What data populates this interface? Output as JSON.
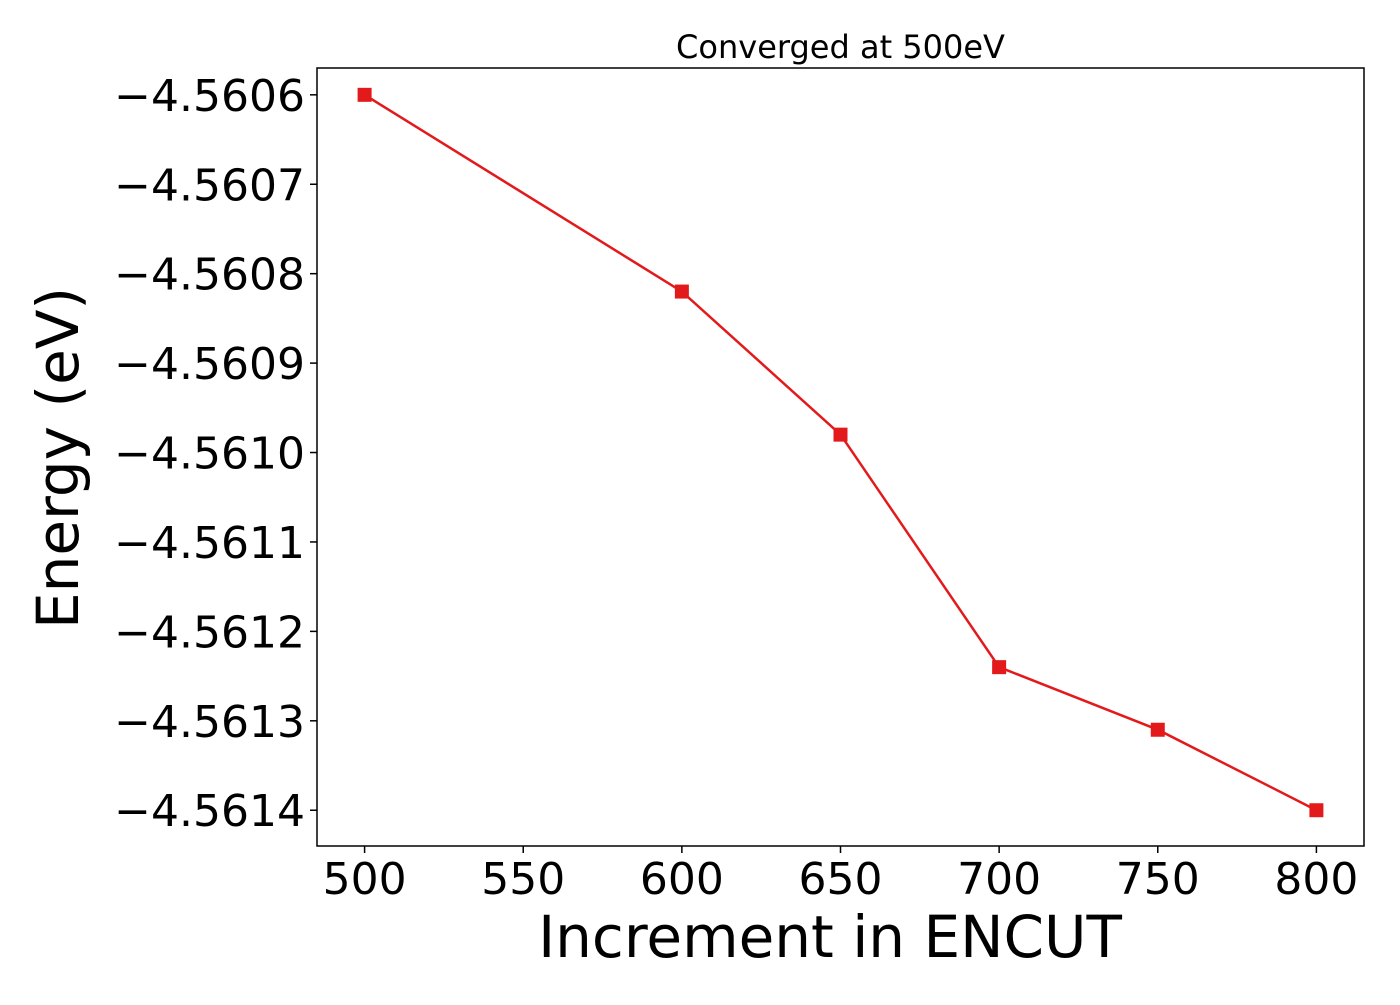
{
  "chart_data": {
    "type": "line",
    "title": "Converged at 500eV",
    "xlabel": "Increment in ENCUT",
    "ylabel": "Energy (eV)",
    "xlim": [
      485,
      815
    ],
    "ylim": [
      -4.56144,
      -4.56057
    ],
    "xticks": [
      500,
      550,
      600,
      650,
      700,
      750,
      800
    ],
    "xtick_labels": [
      "500",
      "550",
      "600",
      "650",
      "700",
      "750",
      "800"
    ],
    "yticks": [
      -4.5606,
      -4.5607,
      -4.5608,
      -4.5609,
      -4.561,
      -4.5611,
      -4.5612,
      -4.5613,
      -4.5614
    ],
    "ytick_labels": [
      "−4.5606",
      "−4.5607",
      "−4.5608",
      "−4.5609",
      "−4.5610",
      "−4.5611",
      "−4.5612",
      "−4.5613",
      "−4.5614"
    ],
    "grid": false,
    "series": [
      {
        "color": "#e31a1c",
        "marker": "square",
        "x": [
          500,
          600,
          650,
          700,
          750,
          800
        ],
        "y": [
          -4.5606,
          -4.56082,
          -4.56098,
          -4.56124,
          -4.56131,
          -4.5614
        ]
      }
    ]
  }
}
